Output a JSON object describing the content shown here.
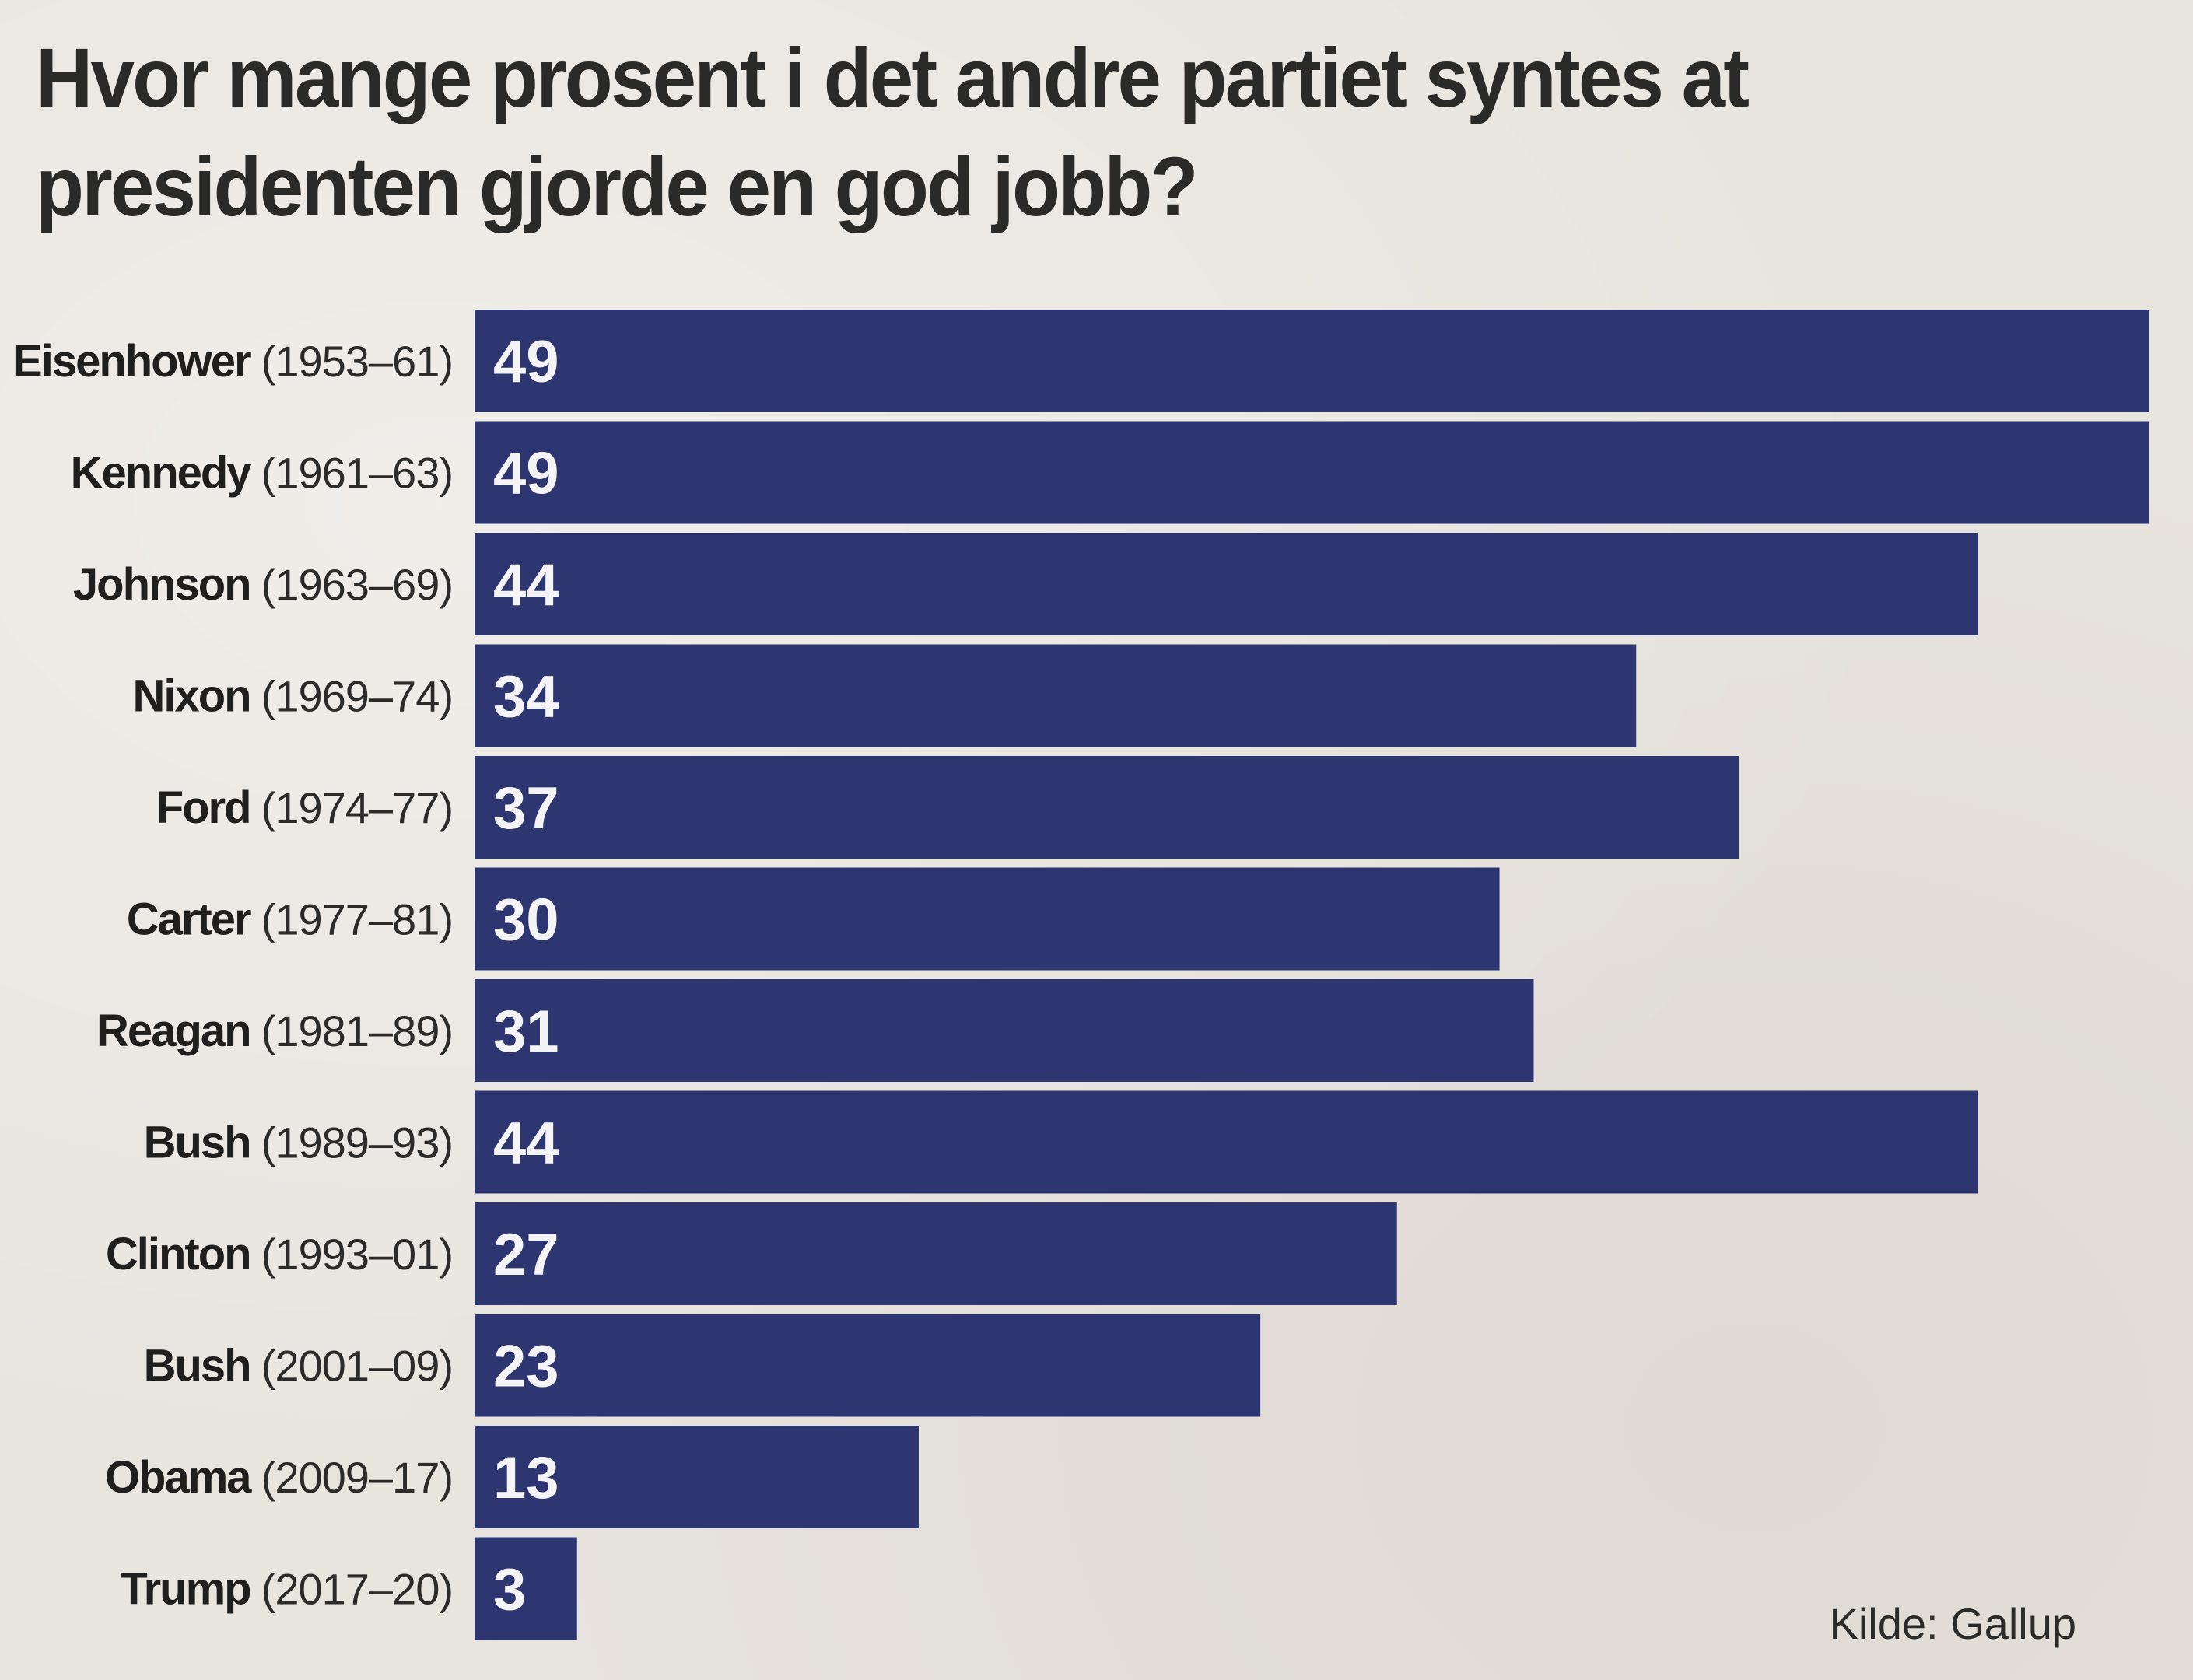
{
  "chart_data": {
    "type": "bar",
    "orientation": "horizontal",
    "title": "Hvor mange prosent i det andre partiet syntes at presidenten gjorde en god jobb?",
    "categories": [
      {
        "name": "Eisenhower",
        "years": "(1953–61)"
      },
      {
        "name": "Kennedy",
        "years": "(1961–63)"
      },
      {
        "name": "Johnson",
        "years": "(1963–69)"
      },
      {
        "name": "Nixon",
        "years": "(1969–74)"
      },
      {
        "name": "Ford",
        "years": "(1974–77)"
      },
      {
        "name": "Carter",
        "years": "(1977–81)"
      },
      {
        "name": "Reagan",
        "years": "(1981–89)"
      },
      {
        "name": "Bush",
        "years": "(1989–93)"
      },
      {
        "name": "Clinton",
        "years": "(1993–01)"
      },
      {
        "name": "Bush",
        "years": "(2001–09)"
      },
      {
        "name": "Obama",
        "years": "(2009–17)"
      },
      {
        "name": "Trump",
        "years": "(2017–20)"
      }
    ],
    "values": [
      49,
      49,
      44,
      34,
      37,
      30,
      31,
      44,
      27,
      23,
      13,
      3
    ],
    "value_labels": [
      "49",
      "49",
      "44",
      "34",
      "37",
      "30",
      "31",
      "44",
      "27",
      "23",
      "13",
      "3"
    ],
    "xlim": [
      0,
      49
    ],
    "bar_color": "#2d3670",
    "value_label_color": "#f4f4f6",
    "grid": false,
    "source": "Kilde: Gallup"
  }
}
